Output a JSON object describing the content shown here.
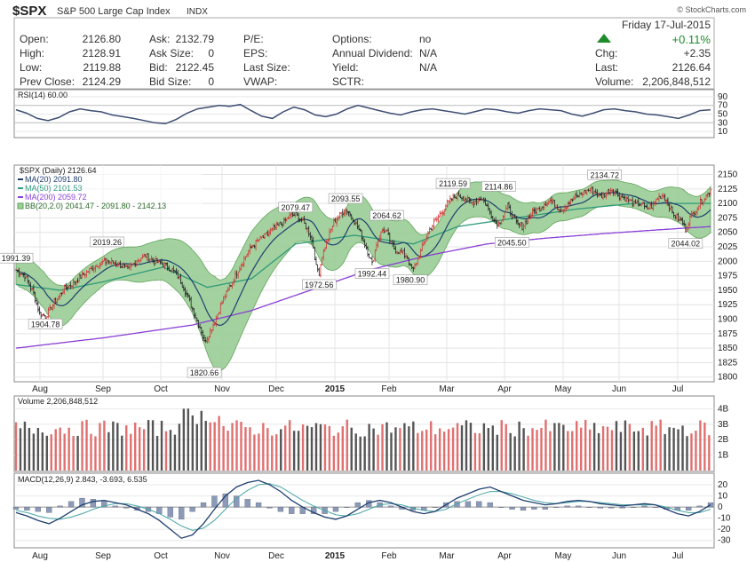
{
  "header": {
    "symbol": "$SPX",
    "name": "S&P 500 Large Cap Index",
    "exchange": "INDX",
    "watermark": "© StockCharts.com",
    "date": "Friday 17-Jul-2015",
    "change_pct": "+0.11%",
    "change_color": "#1e8c2a"
  },
  "quote": {
    "open_label": "Open:",
    "open": "2126.80",
    "high_label": "High:",
    "high": "2128.91",
    "low_label": "Low:",
    "low": "2119.88",
    "prev_label": "Prev Close:",
    "prev": "2124.29",
    "ask_label": "Ask:",
    "ask": "2132.79",
    "asksize_label": "Ask Size:",
    "asksize": "0",
    "bid_label": "Bid:",
    "bid": "2122.45",
    "bidsize_label": "Bid Size:",
    "bidsize": "0",
    "pe_label": "P/E:",
    "eps_label": "EPS:",
    "lastsize_label": "Last Size:",
    "vwap_label": "VWAP:",
    "options_label": "Options:",
    "options": "no",
    "annual_label": "Annual Dividend:",
    "annual": "N/A",
    "yield_label": "Yield:",
    "yield": "N/A",
    "sctr_label": "SCTR:",
    "chg_label": "Chg:",
    "chg": "+2.35",
    "last_label": "Last:",
    "last": "2126.64",
    "volume_label": "Volume:",
    "volume": "2,206,848,512"
  },
  "legends": {
    "rsi": "RSI(14) 60.00",
    "price": "$SPX (Daily) 2126.64",
    "ma20": "MA(20) 2091.80",
    "ma50": "MA(50) 2101.53",
    "ma200": "MA(200) 2059.72",
    "bb": "BB(20,2.0) 2041.47 - 2091.80 - 2142.13",
    "volume": "Volume 2,206,848,512",
    "macd": "MACD(12,26,9) 2.843, -3.693, 6.535"
  },
  "colors": {
    "up": "#d33a3a",
    "down": "#222222",
    "bb_fill": "#9fcf9a",
    "bb_line": "#5aa354",
    "ma20": "#1f3f6f",
    "ma50": "#2f9a7a",
    "ma200": "#8a3fd6",
    "rsi": "#3d4e72",
    "macd": "#1f3f6f",
    "signal": "#4aa6a6",
    "hist": "#8a9ab8",
    "vol_up": "#e07070",
    "vol_down": "#555555"
  },
  "chart_data": [
    {
      "type": "candlestick",
      "title": "$SPX (Daily) 2126.64",
      "x": [
        "Aug",
        "Sep",
        "Oct",
        "Nov",
        "Dec",
        "2015",
        "Feb",
        "Mar",
        "Apr",
        "May",
        "Jun",
        "Jul"
      ],
      "ylim": [
        1795,
        2160
      ],
      "yticks": [
        1800,
        1825,
        1850,
        1875,
        1900,
        1925,
        1950,
        1975,
        2000,
        2025,
        2050,
        2075,
        2100,
        2125,
        2150
      ],
      "close_path": [
        [
          0,
          1985
        ],
        [
          6,
          1975
        ],
        [
          12,
          1945
        ],
        [
          16,
          1910
        ],
        [
          20,
          1905
        ],
        [
          25,
          1925
        ],
        [
          32,
          1950
        ],
        [
          40,
          1965
        ],
        [
          50,
          1985
        ],
        [
          55,
          1995
        ],
        [
          62,
          2000
        ],
        [
          70,
          1995
        ],
        [
          76,
          1985
        ],
        [
          82,
          2002
        ],
        [
          88,
          2010
        ],
        [
          94,
          2000
        ],
        [
          100,
          1995
        ],
        [
          106,
          1985
        ],
        [
          110,
          1975
        ],
        [
          114,
          1955
        ],
        [
          118,
          1930
        ],
        [
          122,
          1905
        ],
        [
          126,
          1880
        ],
        [
          128,
          1860
        ],
        [
          131,
          1875
        ],
        [
          135,
          1895
        ],
        [
          140,
          1930
        ],
        [
          146,
          1960
        ],
        [
          152,
          1990
        ],
        [
          158,
          2018
        ],
        [
          164,
          2035
        ],
        [
          170,
          2045
        ],
        [
          176,
          2058
        ],
        [
          182,
          2068
        ],
        [
          186,
          2078
        ],
        [
          190,
          2080
        ],
        [
          194,
          2072
        ],
        [
          197,
          2060
        ],
        [
          200,
          2045
        ],
        [
          202,
          2025
        ],
        [
          204,
          1990
        ],
        [
          206,
          1980
        ],
        [
          208,
          2010
        ],
        [
          212,
          2040
        ],
        [
          216,
          2068
        ],
        [
          220,
          2080
        ],
        [
          224,
          2090
        ],
        [
          226,
          2085
        ],
        [
          230,
          2070
        ],
        [
          234,
          2050
        ],
        [
          237,
          2030
        ],
        [
          240,
          2010
        ],
        [
          242,
          1995
        ],
        [
          245,
          2030
        ],
        [
          249,
          2055
        ],
        [
          252,
          2050
        ],
        [
          255,
          2030
        ],
        [
          258,
          2020
        ],
        [
          262,
          2015
        ],
        [
          266,
          2008
        ],
        [
          268,
          1990
        ],
        [
          270,
          1985
        ],
        [
          273,
          2005
        ],
        [
          277,
          2030
        ],
        [
          281,
          2055
        ],
        [
          285,
          2070
        ],
        [
          289,
          2085
        ],
        [
          293,
          2100
        ],
        [
          297,
          2110
        ],
        [
          301,
          2115
        ],
        [
          305,
          2108
        ],
        [
          309,
          2100
        ],
        [
          313,
          2105
        ],
        [
          316,
          2110
        ],
        [
          319,
          2100
        ],
        [
          322,
          2085
        ],
        [
          325,
          2070
        ],
        [
          328,
          2065
        ],
        [
          331,
          2080
        ],
        [
          334,
          2095
        ],
        [
          337,
          2080
        ],
        [
          340,
          2065
        ],
        [
          344,
          2060
        ],
        [
          347,
          2070
        ],
        [
          351,
          2085
        ],
        [
          355,
          2090
        ],
        [
          359,
          2100
        ],
        [
          363,
          2105
        ],
        [
          367,
          2095
        ],
        [
          371,
          2090
        ],
        [
          375,
          2100
        ],
        [
          379,
          2108
        ],
        [
          383,
          2115
        ],
        [
          387,
          2120
        ],
        [
          390,
          2125
        ],
        [
          393,
          2120
        ],
        [
          397,
          2112
        ],
        [
          401,
          2118
        ],
        [
          405,
          2125
        ],
        [
          409,
          2115
        ],
        [
          413,
          2110
        ],
        [
          417,
          2105
        ],
        [
          421,
          2098
        ],
        [
          425,
          2100
        ],
        [
          428,
          2090
        ],
        [
          432,
          2095
        ],
        [
          436,
          2110
        ],
        [
          440,
          2115
        ],
        [
          443,
          2100
        ],
        [
          446,
          2085
        ],
        [
          449,
          2076
        ],
        [
          452,
          2070
        ],
        [
          455,
          2055
        ],
        [
          458,
          2075
        ],
        [
          462,
          2090
        ],
        [
          466,
          2105
        ],
        [
          470,
          2115
        ],
        [
          472,
          2126
        ]
      ],
      "labels": [
        {
          "text": "1991.39",
          "x": 0,
          "y": 1991
        },
        {
          "text": "1904.78",
          "x": 20,
          "y": 1905
        },
        {
          "text": "2019.26",
          "x": 62,
          "y": 2019
        },
        {
          "text": "1820.66",
          "x": 128,
          "y": 1821
        },
        {
          "text": "2079.47",
          "x": 190,
          "y": 2079
        },
        {
          "text": "1972.56",
          "x": 206,
          "y": 1973
        },
        {
          "text": "2093.55",
          "x": 224,
          "y": 2094
        },
        {
          "text": "1992.44",
          "x": 242,
          "y": 1992
        },
        {
          "text": "2064.62",
          "x": 252,
          "y": 2065
        },
        {
          "text": "1980.90",
          "x": 268,
          "y": 1981
        },
        {
          "text": "2119.59",
          "x": 297,
          "y": 2120
        },
        {
          "text": "2114.86",
          "x": 328,
          "y": 2115
        },
        {
          "text": "2045.50",
          "x": 337,
          "y": 2046
        },
        {
          "text": "2134.72",
          "x": 400,
          "y": 2135
        },
        {
          "text": "2044.02",
          "x": 455,
          "y": 2044
        }
      ],
      "ma200_path": [
        [
          0,
          1850
        ],
        [
          60,
          1868
        ],
        [
          120,
          1890
        ],
        [
          160,
          1915
        ],
        [
          200,
          1950
        ],
        [
          240,
          1985
        ],
        [
          280,
          2010
        ],
        [
          320,
          2030
        ],
        [
          360,
          2040
        ],
        [
          400,
          2048
        ],
        [
          440,
          2055
        ],
        [
          472,
          2060
        ]
      ],
      "ma50_path": [
        [
          0,
          1960
        ],
        [
          30,
          1950
        ],
        [
          60,
          1965
        ],
        [
          100,
          1990
        ],
        [
          130,
          1955
        ],
        [
          160,
          1970
        ],
        [
          190,
          2030
        ],
        [
          230,
          2045
        ],
        [
          270,
          2030
        ],
        [
          300,
          2060
        ],
        [
          340,
          2075
        ],
        [
          380,
          2090
        ],
        [
          420,
          2100
        ],
        [
          472,
          2100
        ]
      ],
      "bb_width_path": [
        [
          0,
          25
        ],
        [
          30,
          35
        ],
        [
          60,
          25
        ],
        [
          100,
          35
        ],
        [
          120,
          55
        ],
        [
          135,
          80
        ],
        [
          160,
          70
        ],
        [
          190,
          35
        ],
        [
          210,
          45
        ],
        [
          240,
          40
        ],
        [
          270,
          40
        ],
        [
          300,
          30
        ],
        [
          330,
          30
        ],
        [
          360,
          25
        ],
        [
          400,
          22
        ],
        [
          430,
          20
        ],
        [
          450,
          30
        ],
        [
          472,
          40
        ]
      ]
    },
    {
      "type": "line",
      "title": "RSI(14) 60.00",
      "ylim": [
        0,
        100
      ],
      "yticks": [
        10,
        30,
        50,
        70,
        90
      ],
      "values": [
        60,
        52,
        40,
        35,
        42,
        55,
        62,
        58,
        55,
        48,
        44,
        40,
        35,
        30,
        28,
        38,
        52,
        62,
        66,
        70,
        68,
        72,
        58,
        45,
        40,
        55,
        66,
        60,
        48,
        44,
        50,
        62,
        70,
        64,
        58,
        52,
        48,
        55,
        60,
        62,
        58,
        54,
        50,
        56,
        62,
        60,
        55,
        52,
        58,
        62,
        60,
        58,
        50,
        45,
        52,
        60,
        62,
        58,
        55,
        50,
        48,
        44,
        40,
        48,
        58,
        60
      ]
    },
    {
      "type": "bar",
      "title": "Volume 2,206,848,512",
      "yticks_label": [
        "1B",
        "2B",
        "3B",
        "4B"
      ],
      "ylim": [
        0,
        4.6
      ]
    },
    {
      "type": "line",
      "title": "MACD(12,26,9) 2.843, -3.693, 6.535",
      "ylim": [
        -35,
        28
      ],
      "yticks": [
        -30,
        -20,
        -10,
        0,
        10,
        20
      ],
      "macd": [
        -5,
        -8,
        -12,
        -15,
        -10,
        -4,
        2,
        5,
        6,
        4,
        2,
        -2,
        -6,
        -12,
        -20,
        -28,
        -25,
        -15,
        -2,
        10,
        18,
        22,
        24,
        20,
        14,
        6,
        0,
        -5,
        -9,
        -11,
        -8,
        -2,
        4,
        6,
        4,
        0,
        -4,
        -6,
        -4,
        2,
        8,
        12,
        16,
        18,
        14,
        10,
        6,
        4,
        2,
        3,
        5,
        6,
        5,
        3,
        2,
        1,
        2,
        3,
        2,
        -2,
        -6,
        -8,
        -4,
        2
      ],
      "signal": [
        -3,
        -5,
        -8,
        -10,
        -11,
        -9,
        -6,
        -2,
        1,
        3,
        3,
        1,
        -2,
        -6,
        -11,
        -17,
        -21,
        -19,
        -12,
        -2,
        8,
        15,
        20,
        21,
        18,
        12,
        6,
        1,
        -3,
        -7,
        -8,
        -6,
        -2,
        2,
        3,
        2,
        -1,
        -3,
        -4,
        -2,
        3,
        7,
        11,
        14,
        14,
        12,
        9,
        6,
        4,
        3,
        4,
        5,
        5,
        4,
        3,
        2,
        2,
        2,
        2,
        0,
        -3,
        -5,
        -5,
        -2
      ]
    }
  ]
}
